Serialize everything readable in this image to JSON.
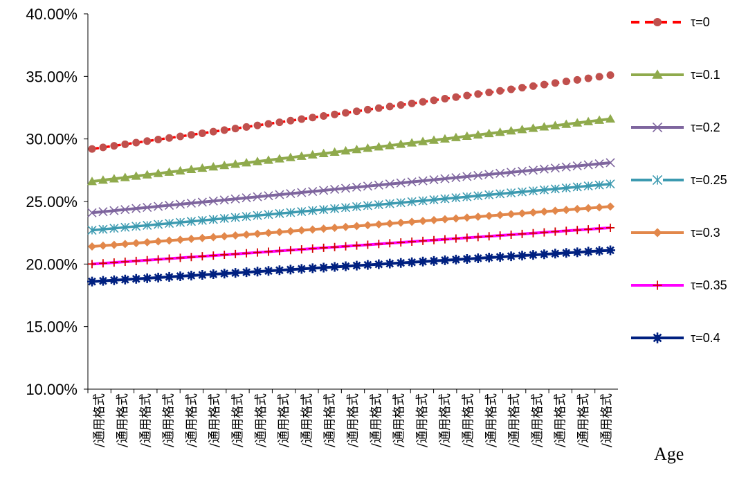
{
  "chart_data": {
    "type": "line",
    "title": "",
    "xlabel": "Age",
    "ylabel": "",
    "ylim": [
      0.1,
      0.4
    ],
    "yticks": [
      "10.00%",
      "15.00%",
      "20.00%",
      "25.00%",
      "30.00%",
      "35.00%",
      "40.00%"
    ],
    "x_tick_label": "/通用格式",
    "x_tick_count": 23,
    "points_per_series": 48,
    "grid": false,
    "legend_position": "right",
    "series": [
      {
        "name": "τ=0",
        "start": 0.292,
        "end": 0.351,
        "color": "#c0504d",
        "line_color": "#ff0000",
        "marker": "circle",
        "line_style": "dashed"
      },
      {
        "name": "τ=0.1",
        "start": 0.266,
        "end": 0.316,
        "color": "#8faa4c",
        "line_color": "#8faa4c",
        "marker": "triangle",
        "line_style": "solid"
      },
      {
        "name": "τ=0.2",
        "start": 0.241,
        "end": 0.281,
        "color": "#7e659e",
        "line_color": "#7e659e",
        "marker": "x",
        "line_style": "solid"
      },
      {
        "name": "τ=0.25",
        "start": 0.227,
        "end": 0.264,
        "color": "#3c9ab0",
        "line_color": "#3c9ab0",
        "marker": "asterisk",
        "line_style": "dotted"
      },
      {
        "name": "τ=0.3",
        "start": 0.214,
        "end": 0.246,
        "color": "#e2874a",
        "line_color": "#e2874a",
        "marker": "diamond",
        "line_style": "solid"
      },
      {
        "name": "τ=0.35",
        "start": 0.2,
        "end": 0.229,
        "color": "#ff00ff",
        "line_color": "#ff00ff",
        "marker": "plus",
        "line_style": "solid",
        "marker_color": "#d40000"
      },
      {
        "name": "τ=0.4",
        "start": 0.186,
        "end": 0.211,
        "color": "#002080",
        "line_color": "#002080",
        "marker": "star",
        "line_style": "solid"
      }
    ]
  }
}
